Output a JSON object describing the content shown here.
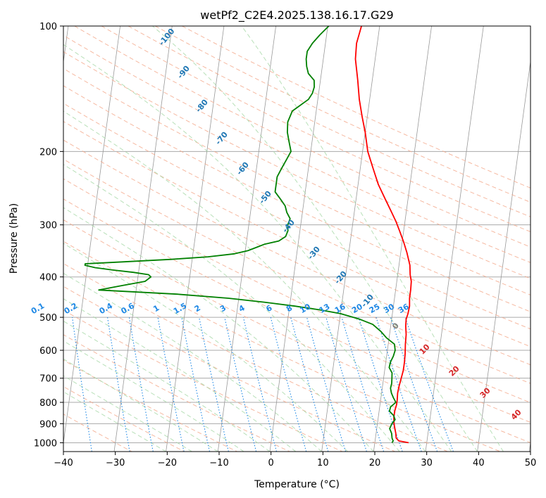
{
  "chart_data": {
    "type": "line",
    "title": "wetPf2_C2E4.2025.138.16.17.G29",
    "xlabel": "Temperature (°C)",
    "ylabel": "Pressure (hPa)",
    "xlim": [
      -40,
      50
    ],
    "ylim": [
      1050,
      100
    ],
    "y_scale": "log",
    "grid": true,
    "x_ticks": [
      "−40",
      "−30",
      "−20",
      "−10",
      "0",
      "10",
      "20",
      "30",
      "40",
      "50"
    ],
    "x_tick_values": [
      -40,
      -30,
      -20,
      -10,
      0,
      10,
      20,
      30,
      40,
      50
    ],
    "y_ticks": [
      "100",
      "200",
      "300",
      "400",
      "500",
      "600",
      "700",
      "800",
      "900",
      "1000"
    ],
    "y_tick_values": [
      100,
      200,
      300,
      400,
      500,
      600,
      700,
      800,
      900,
      1000
    ],
    "series": [
      {
        "color": "#ff0000",
        "p": [
          1000,
          990,
          975,
          950,
          925,
          900,
          870,
          840,
          810,
          790,
          760,
          730,
          700,
          670,
          640,
          610,
          580,
          550,
          525,
          505,
          490,
          470,
          450,
          430,
          410,
          395,
          375,
          350,
          330,
          310,
          295,
          280,
          260,
          240,
          220,
          200,
          180,
          165,
          150,
          135,
          120,
          110,
          100
        ],
        "t": [
          26.5,
          24.6,
          24.0,
          23.8,
          23.5,
          23.2,
          23.0,
          23.0,
          23.2,
          23.2,
          23.1,
          23.2,
          23.4,
          23.6,
          23.6,
          23.5,
          23.3,
          23.2,
          22.9,
          22.8,
          23.0,
          23.1,
          22.9,
          22.9,
          22.8,
          22.4,
          22.1,
          21.2,
          20.3,
          19.2,
          18.3,
          17.2,
          15.6,
          13.9,
          12.5,
          11.0,
          10.0,
          9.0,
          8.0,
          7.2,
          6.2,
          6.0,
          6.5
        ]
      },
      {
        "color": "#008000",
        "p": [
          1000,
          990,
          975,
          950,
          925,
          900,
          880,
          860,
          840,
          820,
          800,
          780,
          760,
          740,
          720,
          700,
          680,
          660,
          640,
          620,
          600,
          580,
          560,
          540,
          520,
          505,
          490,
          480,
          470,
          460,
          450,
          440,
          430,
          420,
          410,
          400,
          395,
          390,
          385,
          380,
          375,
          372,
          368,
          363,
          358,
          352,
          346,
          340,
          334,
          328,
          320,
          310,
          300,
          290,
          280,
          270,
          260,
          250,
          240,
          230,
          220,
          210,
          200,
          190,
          180,
          170,
          160,
          150,
          145,
          140,
          135,
          130,
          125,
          120,
          115,
          110,
          105,
          100
        ],
        "t": [
          23.3,
          23.5,
          23.2,
          23.0,
          22.5,
          22.8,
          23.3,
          22.9,
          22.0,
          22.1,
          23.0,
          22.4,
          21.9,
          21.6,
          21.7,
          21.6,
          21.5,
          20.8,
          20.9,
          21.3,
          21.5,
          21.2,
          19.5,
          18.2,
          16.5,
          13.8,
          10.0,
          6.0,
          1.0,
          -5.0,
          -12.0,
          -22.0,
          -37.2,
          -33.0,
          -28.5,
          -27.5,
          -28.0,
          -31.0,
          -35.0,
          -38.5,
          -40.5,
          -40.5,
          -33.0,
          -24.0,
          -17.0,
          -12.0,
          -9.5,
          -8.0,
          -6.5,
          -3.8,
          -2.6,
          -2.3,
          -2.5,
          -2.2,
          -3.0,
          -3.5,
          -4.6,
          -5.8,
          -5.8,
          -5.8,
          -5.2,
          -4.5,
          -3.8,
          -4.4,
          -5.0,
          -5.2,
          -4.6,
          -1.8,
          -1.2,
          -1.0,
          -1.2,
          -2.5,
          -3.0,
          -3.3,
          -3.3,
          -2.5,
          -1.3,
          0.2
        ]
      }
    ],
    "dry_adiabat_labels": [
      "-100",
      "-90",
      "-80",
      "-70",
      "-60",
      "-50",
      "-40",
      "-30",
      "-20",
      "-10"
    ],
    "dry_adiabat_values": [
      -100,
      -90,
      -80,
      -70,
      -60,
      -50,
      -40,
      -30,
      -20,
      -10
    ],
    "mixing_ratio_labels": [
      "0.1",
      "0.2",
      "0.4",
      "0.6",
      "1",
      "1.5",
      "2",
      "3",
      "4",
      "6",
      "8",
      "10",
      "13",
      "16",
      "20",
      "25",
      "30",
      "36"
    ],
    "mixing_ratio_values": [
      0.1,
      0.2,
      0.4,
      0.6,
      1,
      1.5,
      2,
      3,
      4,
      6,
      8,
      10,
      13,
      16,
      20,
      25,
      30,
      36
    ],
    "moist_adiabat_labels": [
      "0",
      "10",
      "20",
      "30",
      "40"
    ],
    "moist_adiabat_values": [
      0,
      10,
      20,
      30,
      40
    ],
    "colors": {
      "temperature": "#ff0000",
      "dewpoint": "#008000",
      "isotherm": "#999999",
      "isobar": "#aaaaaa",
      "dry_adiabat": "#f4a88a",
      "moist_adiabat": "#a6d8a6",
      "mixing_ratio": "#1e88e5",
      "dry_label": "#1f77b4",
      "moist_label": "#d62728",
      "zero_label": "#808080"
    }
  }
}
